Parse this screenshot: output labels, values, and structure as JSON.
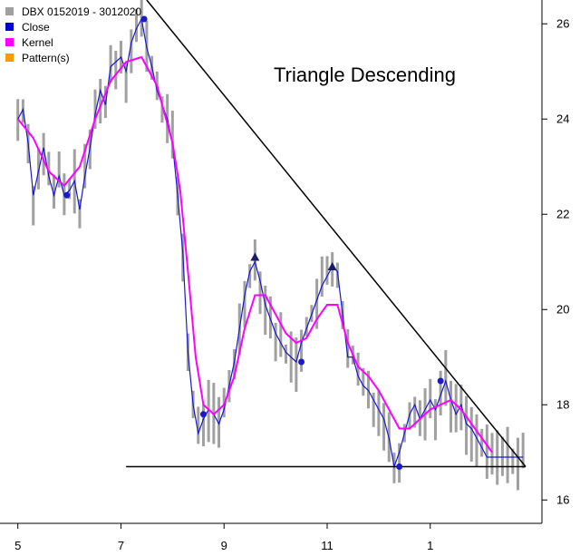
{
  "chart_data": {
    "type": "line",
    "annotation": "Triangle Descending",
    "legend": {
      "placement": "top-left",
      "entries": [
        {
          "label": "DBX 0152019 - 3012020",
          "color": "#a0a0a0"
        },
        {
          "label": "Close",
          "color": "#0000cc"
        },
        {
          "label": "Kernel",
          "color": "#ff00ff"
        },
        {
          "label": "Pattern(s)",
          "color": "#ff9900"
        }
      ]
    },
    "x_ticks": [
      "5",
      "7",
      "9",
      "11",
      "1"
    ],
    "y_ticks": [
      "16",
      "18",
      "20",
      "22",
      "24",
      "26"
    ],
    "ylim": [
      15.7,
      26.5
    ],
    "xlim": [
      4.9,
      14.85
    ],
    "grid": false,
    "colors": {
      "bars": "#a0a0a0",
      "close": "#1a1acc",
      "kernel": "#ff00ff",
      "pattern": "#000000",
      "markers": "#1a1acc"
    },
    "series": [
      {
        "name": "Close",
        "x": [
          5.0,
          5.1,
          5.2,
          5.3,
          5.4,
          5.5,
          5.6,
          5.7,
          5.8,
          5.9,
          6.0,
          6.1,
          6.2,
          6.3,
          6.4,
          6.5,
          6.6,
          6.7,
          6.8,
          6.9,
          7.0,
          7.1,
          7.2,
          7.3,
          7.4,
          7.5,
          7.6,
          7.7,
          7.8,
          7.9,
          8.0,
          8.1,
          8.2,
          8.3,
          8.4,
          8.5,
          8.6,
          8.7,
          8.8,
          8.9,
          9.0,
          9.1,
          9.2,
          9.3,
          9.4,
          9.5,
          9.6,
          9.7,
          9.8,
          9.9,
          10.0,
          10.1,
          10.2,
          10.3,
          10.4,
          10.5,
          10.6,
          10.7,
          10.8,
          10.9,
          11.0,
          11.1,
          11.2,
          11.3,
          11.4,
          11.5,
          11.6,
          11.7,
          11.8,
          11.9,
          12.0,
          12.1,
          12.2,
          12.3,
          12.4,
          12.5,
          12.6,
          12.7,
          12.8,
          12.9,
          13.0,
          13.1,
          13.2,
          13.3,
          13.4,
          13.5,
          13.6,
          13.7,
          13.8,
          13.9,
          14.0,
          14.1,
          14.2,
          14.3,
          14.4,
          14.5,
          14.6,
          14.7,
          14.8
        ],
        "values": [
          24.0,
          24.2,
          23.5,
          22.4,
          22.9,
          23.4,
          22.8,
          22.4,
          22.8,
          22.4,
          22.5,
          22.7,
          22.1,
          22.8,
          23.4,
          24.1,
          24.6,
          24.3,
          25.1,
          25.2,
          25.3,
          25.0,
          25.6,
          25.9,
          26.1,
          25.5,
          25.1,
          24.6,
          24.3,
          24.0,
          23.5,
          22.4,
          21.2,
          19.1,
          18.0,
          17.4,
          17.7,
          17.9,
          17.8,
          17.6,
          17.9,
          18.4,
          18.9,
          19.6,
          20.3,
          20.8,
          21.0,
          20.6,
          20.1,
          19.8,
          19.5,
          19.3,
          19.1,
          19.0,
          18.9,
          19.3,
          19.6,
          19.9,
          20.2,
          20.5,
          20.7,
          20.9,
          20.8,
          19.9,
          19.0,
          19.0,
          18.6,
          18.4,
          18.3,
          18.1,
          17.9,
          17.7,
          17.3,
          16.7,
          17.0,
          17.4,
          17.8,
          18.0,
          17.7,
          17.9,
          18.1,
          17.9,
          18.2,
          18.5,
          18.1,
          17.8,
          18.0,
          17.6,
          17.5,
          17.3,
          17.1,
          16.9,
          16.9,
          16.9,
          16.9,
          16.9,
          16.9,
          16.9,
          16.9
        ]
      },
      {
        "name": "Kernel",
        "x": [
          5.0,
          5.3,
          5.6,
          5.9,
          6.2,
          6.5,
          6.8,
          7.1,
          7.4,
          7.7,
          8.0,
          8.15,
          8.3,
          8.45,
          8.6,
          8.8,
          9.0,
          9.2,
          9.4,
          9.6,
          9.8,
          10.0,
          10.2,
          10.4,
          10.6,
          10.8,
          11.0,
          11.2,
          11.4,
          11.6,
          11.8,
          12.0,
          12.2,
          12.4,
          12.6,
          12.8,
          13.0,
          13.2,
          13.4,
          13.6,
          13.8,
          14.0,
          14.2
        ],
        "values": [
          24.0,
          23.6,
          22.9,
          22.6,
          23.0,
          24.0,
          24.8,
          25.2,
          25.3,
          24.7,
          23.5,
          22.5,
          20.8,
          19.0,
          18.0,
          17.8,
          18.0,
          18.6,
          19.6,
          20.3,
          20.3,
          19.9,
          19.5,
          19.3,
          19.4,
          19.8,
          20.1,
          20.1,
          19.3,
          18.8,
          18.6,
          18.3,
          17.9,
          17.5,
          17.5,
          17.7,
          17.9,
          18.0,
          18.1,
          17.9,
          17.6,
          17.3,
          17.0
        ]
      }
    ],
    "markers": [
      {
        "x": 5.95,
        "y": 22.4,
        "shape": "circle"
      },
      {
        "x": 7.45,
        "y": 26.1,
        "shape": "circle"
      },
      {
        "x": 8.6,
        "y": 17.8,
        "shape": "circle"
      },
      {
        "x": 9.6,
        "y": 21.1,
        "shape": "triangle"
      },
      {
        "x": 10.5,
        "y": 18.9,
        "shape": "circle"
      },
      {
        "x": 11.1,
        "y": 20.9,
        "shape": "triangle"
      },
      {
        "x": 12.4,
        "y": 16.7,
        "shape": "circle"
      },
      {
        "x": 13.2,
        "y": 18.5,
        "shape": "circle"
      }
    ],
    "pattern_lines": [
      {
        "x1": 7.5,
        "y1": 26.5,
        "x2": 14.85,
        "y2": 16.7
      },
      {
        "x1": 7.1,
        "y1": 16.7,
        "x2": 14.85,
        "y2": 16.7
      }
    ]
  }
}
